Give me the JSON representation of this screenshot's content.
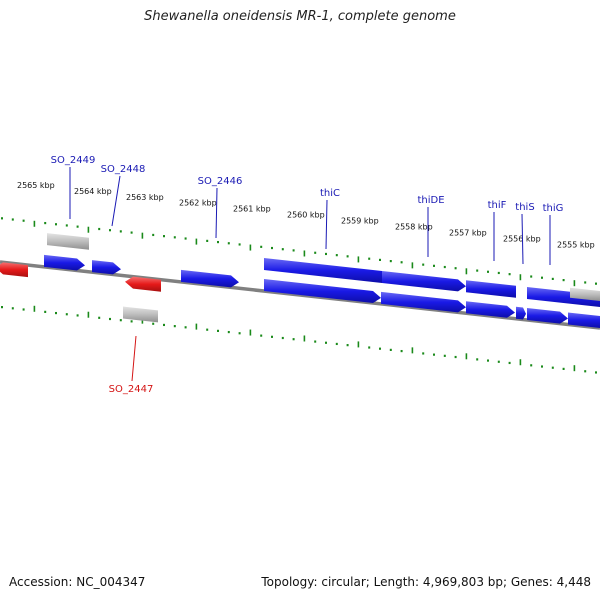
{
  "title": "Shewanella oneidensis MR-1, complete genome",
  "footer": {
    "accession": "Accession: NC_004347",
    "summary": "Topology: circular; Length: 4,969,803 bp; Genes: 4,448"
  },
  "colors": {
    "tick": "#1a8a1a",
    "backbone": "#808080",
    "forward_gene": "#1a1ae6",
    "reverse_gene": "#e61a1a",
    "rna_gene": "#b8b8b8",
    "forward_label": "#1a1ab4",
    "reverse_label": "#d41414"
  },
  "ruler": {
    "labels": [
      "2565 kbp",
      "2564 kbp",
      "2563 kbp",
      "2562 kbp",
      "2561 kbp",
      "2560 kbp",
      "2559 kbp",
      "2558 kbp",
      "2557 kbp",
      "2556 kbp",
      "2555 kbp"
    ]
  },
  "gene_labels": {
    "forward": [
      "SO_2449",
      "SO_2448",
      "SO_2446",
      "thiC",
      "thiDE",
      "thiF",
      "thiS",
      "thiG"
    ],
    "reverse": [
      "SO_2447"
    ]
  }
}
